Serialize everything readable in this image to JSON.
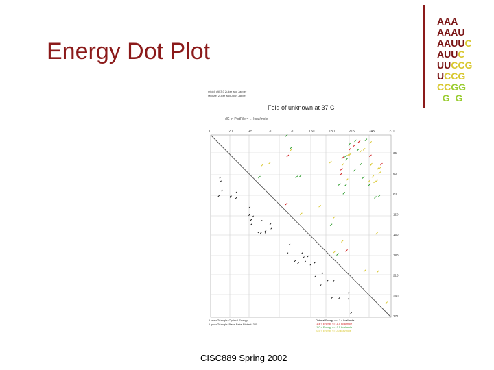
{
  "slide": {
    "title": "Energy Dot Plot",
    "footer": "CISC889 Spring 2002"
  },
  "sequence_rows": [
    [
      {
        "t": "A",
        "c": "#7a1414"
      },
      {
        "t": "A",
        "c": "#7a1414"
      },
      {
        "t": "A",
        "c": "#7a1414"
      }
    ],
    [
      {
        "t": "A",
        "c": "#7a1414"
      },
      {
        "t": "A",
        "c": "#7a1414"
      },
      {
        "t": "A",
        "c": "#7a1414"
      },
      {
        "t": "U",
        "c": "#7a1414"
      }
    ],
    [
      {
        "t": "A",
        "c": "#7a1414"
      },
      {
        "t": "A",
        "c": "#7a1414"
      },
      {
        "t": "U",
        "c": "#7a1414"
      },
      {
        "t": "U",
        "c": "#7a1414"
      },
      {
        "t": "C",
        "c": "#d9c832"
      }
    ],
    [
      {
        "t": "A",
        "c": "#7a1414"
      },
      {
        "t": "U",
        "c": "#7a1414"
      },
      {
        "t": "U",
        "c": "#7a1414"
      },
      {
        "t": "C",
        "c": "#d9c832"
      }
    ],
    [
      {
        "t": "U",
        "c": "#7a1414"
      },
      {
        "t": "U",
        "c": "#7a1414"
      },
      {
        "t": "C",
        "c": "#d9c832"
      },
      {
        "t": "C",
        "c": "#d9c832"
      },
      {
        "t": "G",
        "c": "#d9c832"
      }
    ],
    [
      {
        "t": "U",
        "c": "#7a1414"
      },
      {
        "t": "C",
        "c": "#d9c832"
      },
      {
        "t": "C",
        "c": "#d9c832"
      },
      {
        "t": "G",
        "c": "#d9c832"
      }
    ],
    [
      {
        "t": "C",
        "c": "#d9c832"
      },
      {
        "t": "C",
        "c": "#d9c832"
      },
      {
        "t": "G",
        "c": "#9acd32"
      },
      {
        "t": "G",
        "c": "#9acd32"
      }
    ],
    [
      {
        "t": "  ",
        "c": "#9acd32"
      },
      {
        "t": "G",
        "c": "#9acd32"
      },
      {
        "t": "  ",
        "c": "#9acd32"
      },
      {
        "t": "G",
        "c": "#9acd32"
      }
    ]
  ],
  "plot": {
    "header_lines": [
      "mfold_util 3.0 Zuker and Jaeger",
      "Michael Zuker and John Jaeger"
    ],
    "title": "Fold of unknown at 37 C",
    "subtitle": "dG in PlotFile = ... kcal/mole",
    "top_ticks": [
      "1",
      "20",
      "45",
      "70",
      "120",
      "150",
      "180",
      "215",
      "245",
      "271"
    ],
    "right_ticks": [
      "35",
      "60",
      "80",
      "120",
      "150",
      "180",
      "215",
      "240",
      "271"
    ],
    "legend_left": [
      "Lower Triangle: Optimal Energy",
      "Upper Triangle: Base Pairs Plotted: 305"
    ],
    "legend_right": [
      {
        "label": "Optimal Energy  <= -1.4 kcal/mole",
        "color": "#000000"
      },
      {
        "label": "-1.4 < Energy <= -1.0 kcal/mole",
        "color": "#d11f1f"
      },
      {
        "label": "-1.0 < Energy <= -0.5 kcal/mole",
        "color": "#2e9c2e"
      },
      {
        "label": "-0.5 < Energy <= 0.0 kcal/mole",
        "color": "#d9c832"
      }
    ]
  }
}
